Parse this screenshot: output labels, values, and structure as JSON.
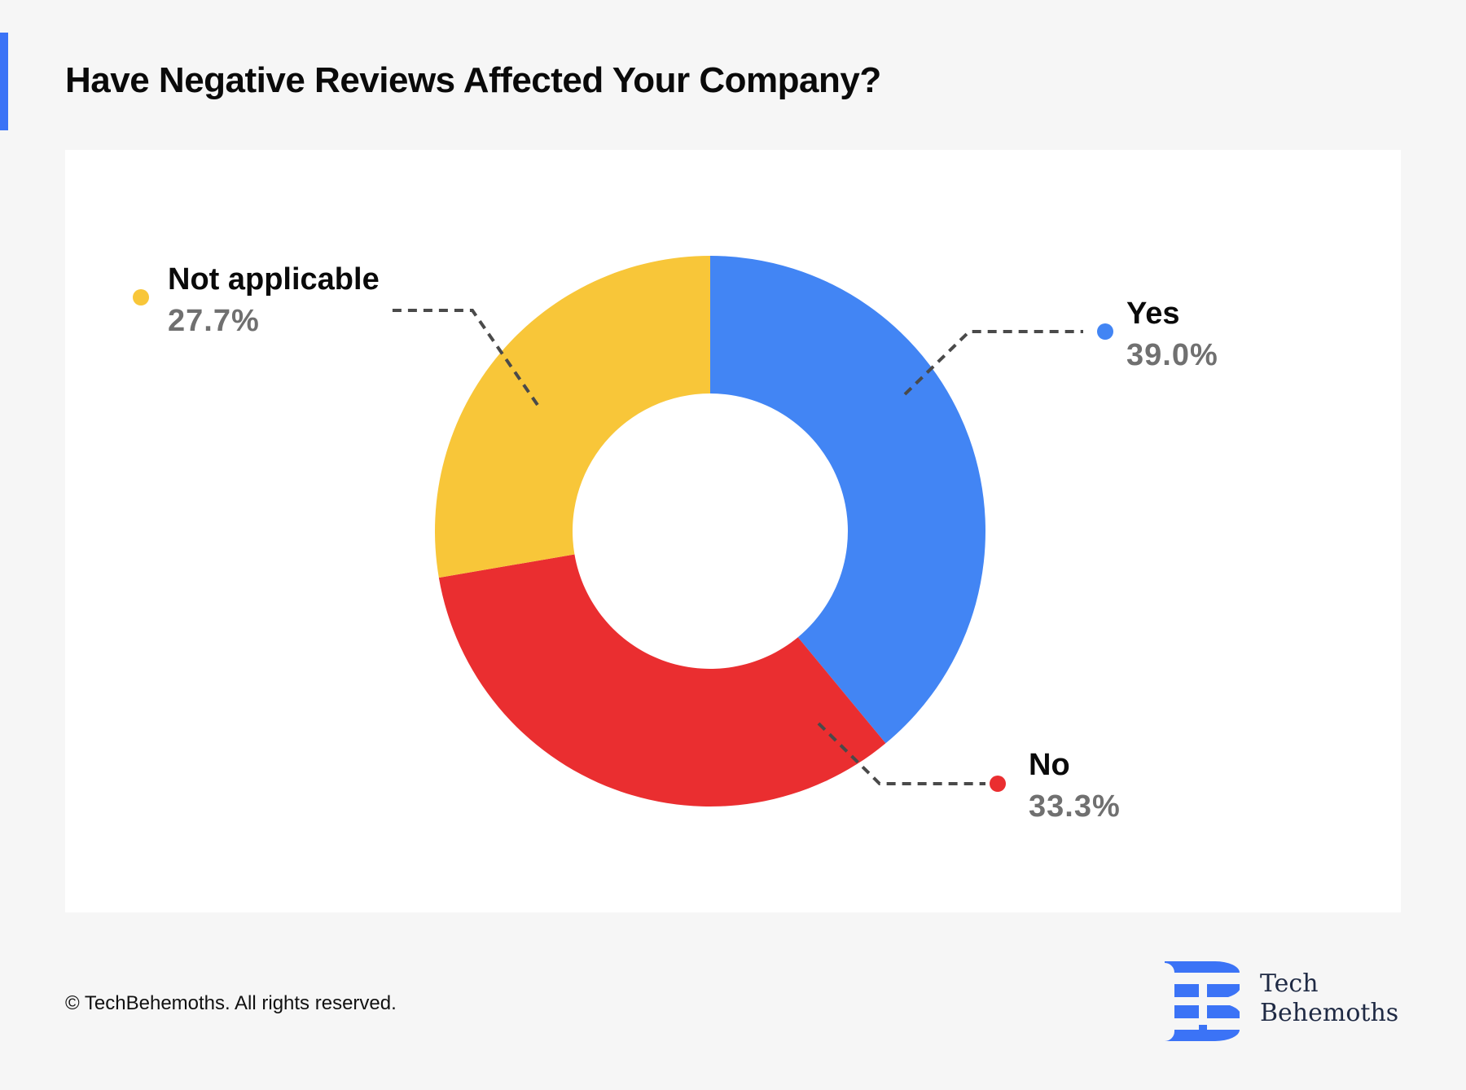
{
  "header": {
    "title": "Have Negative Reviews Affected Your Company?"
  },
  "chart_data": {
    "type": "pie",
    "subtype": "donut",
    "title": "Have Negative Reviews Affected Your Company?",
    "slices": [
      {
        "label": "Yes",
        "value": 39.0,
        "display": "39.0%",
        "color": "#4285f4"
      },
      {
        "label": "No",
        "value": 33.3,
        "display": "33.3%",
        "color": "#ea2e30"
      },
      {
        "label": "Not applicable",
        "value": 27.7,
        "display": "27.7%",
        "color": "#f8c639"
      }
    ],
    "start": "12 o'clock",
    "direction": "clockwise",
    "legend": "callout labels"
  },
  "footer": {
    "copyright": "© TechBehemoths. All rights reserved.",
    "brand_line1": "Tech",
    "brand_line2": "Behemoths",
    "brand_color": "#3b73f6"
  }
}
